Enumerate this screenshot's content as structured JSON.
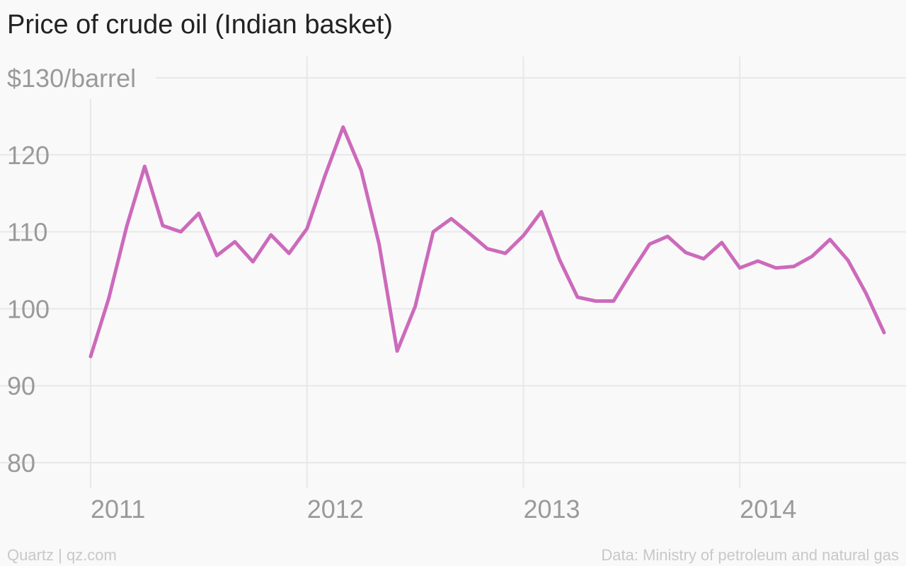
{
  "title": "Price of crude oil (Indian basket)",
  "footer": {
    "source_left": "Quartz | qz.com",
    "source_right": "Data: Ministry of petroleum and natural gas"
  },
  "colors": {
    "line": "#cc6abb",
    "grid": "#e8e8e8",
    "tick_text": "#9a9a9a",
    "title_text": "#222222",
    "background": "#f9f9f9"
  },
  "chart_data": {
    "type": "line",
    "title": "Price of crude oil (Indian basket)",
    "ylabel": "$130/barrel",
    "xlabel": "",
    "ylim": [
      80,
      130
    ],
    "y_ticks": [
      {
        "value": 130,
        "label": "$130/barrel"
      },
      {
        "value": 120,
        "label": "120"
      },
      {
        "value": 110,
        "label": "110"
      },
      {
        "value": 100,
        "label": "100"
      },
      {
        "value": 90,
        "label": "90"
      },
      {
        "value": 80,
        "label": "80"
      }
    ],
    "x_ticks": [
      {
        "value": "2011-01",
        "label": "2011"
      },
      {
        "value": "2012-01",
        "label": "2012"
      },
      {
        "value": "2013-01",
        "label": "2013"
      },
      {
        "value": "2014-01",
        "label": "2014"
      }
    ],
    "xlim": [
      "2011-01",
      "2014-09"
    ],
    "grid": true,
    "series": [
      {
        "x": [
          "2011-01",
          "2011-02",
          "2011-03",
          "2011-04",
          "2011-05",
          "2011-06",
          "2011-07",
          "2011-08",
          "2011-09",
          "2011-10",
          "2011-11",
          "2011-12",
          "2012-01",
          "2012-02",
          "2012-03",
          "2012-04",
          "2012-05",
          "2012-06",
          "2012-07",
          "2012-08",
          "2012-09",
          "2012-10",
          "2012-11",
          "2012-12",
          "2013-01",
          "2013-02",
          "2013-03",
          "2013-04",
          "2013-05",
          "2013-06",
          "2013-07",
          "2013-08",
          "2013-09",
          "2013-10",
          "2013-11",
          "2013-12",
          "2014-01",
          "2014-02",
          "2014-03",
          "2014-04",
          "2014-05",
          "2014-06",
          "2014-07",
          "2014-08",
          "2014-09"
        ],
        "values": [
          93.8,
          101.3,
          110.7,
          118.5,
          110.8,
          110.0,
          112.4,
          106.9,
          108.7,
          106.1,
          109.6,
          107.2,
          110.4,
          117.3,
          123.6,
          118.0,
          108.4,
          94.5,
          100.3,
          110.0,
          111.7,
          109.8,
          107.8,
          107.2,
          109.5,
          112.6,
          106.4,
          101.5,
          101.0,
          101.0,
          104.8,
          108.4,
          109.4,
          107.3,
          106.5,
          108.6,
          105.3,
          106.2,
          105.3,
          105.5,
          106.8,
          109.0,
          106.3,
          102.0,
          96.9
        ]
      }
    ]
  }
}
